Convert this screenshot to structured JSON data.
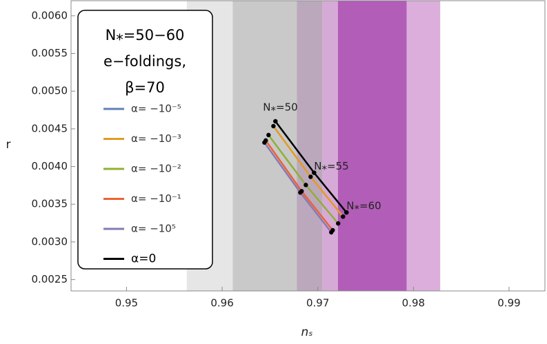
{
  "chart_data": {
    "type": "line",
    "xlabel": "nₛ",
    "ylabel": "r",
    "xlim": [
      0.9442,
      0.99375
    ],
    "ylim": [
      0.00235,
      0.0062
    ],
    "xticks": [
      0.95,
      0.96,
      0.97,
      0.98,
      0.99
    ],
    "yticks": [
      0.0025,
      {
        "value": 0.003,
        "label": "0.0030"
      },
      0.0035,
      {
        "value": 0.004,
        "label": "0.0040"
      },
      0.0045,
      {
        "value": 0.005,
        "label": "0.0050"
      },
      0.0055,
      {
        "value": 0.006,
        "label": "0.0060"
      }
    ],
    "bands": {
      "edges": [
        0.9563,
        0.9611,
        0.9678,
        0.9705,
        0.9721,
        0.9793,
        0.9828
      ],
      "colors": [
        "#e6e6e6",
        "#c9c9c9",
        "#bca8bc",
        "#d6aad6",
        "#b25db8",
        "#dbaedb"
      ]
    },
    "legend_title": [
      "N⁎=50−60",
      "e−foldings,",
      "β=70"
    ],
    "series": [
      {
        "name": "α= −10⁻⁵",
        "color": "#5e81b5",
        "x": [
          0.96557,
          0.96961,
          0.973
        ],
        "values": [
          0.0046,
          0.003918,
          0.003391
        ]
      },
      {
        "name": "α= −10⁻³",
        "color": "#e19c24",
        "x": [
          0.96536,
          0.96925,
          0.97264
        ],
        "values": [
          0.004536,
          0.003864,
          0.003336
        ]
      },
      {
        "name": "α= −10⁻²",
        "color": "#8fb032",
        "x": [
          0.96485,
          0.96875,
          0.97213
        ],
        "values": [
          0.004418,
          0.003755,
          0.003245
        ]
      },
      {
        "name": "α= −10⁻¹",
        "color": "#eb6235",
        "x": [
          0.96456,
          0.96831,
          0.97156
        ],
        "values": [
          0.004346,
          0.003673,
          0.003155
        ]
      },
      {
        "name": "α= −10⁵",
        "color": "#8778b3",
        "x": [
          0.96442,
          0.96817,
          0.97141
        ],
        "values": [
          0.004318,
          0.003655,
          0.003127
        ]
      },
      {
        "name": "α=0",
        "color": "#000000",
        "x": [
          0.96557,
          0.96961,
          0.973
        ],
        "values": [
          0.0046,
          0.003918,
          0.003391
        ]
      }
    ],
    "annotations": [
      "N⁎=50",
      "N⁎=55",
      "N⁎=60"
    ]
  }
}
